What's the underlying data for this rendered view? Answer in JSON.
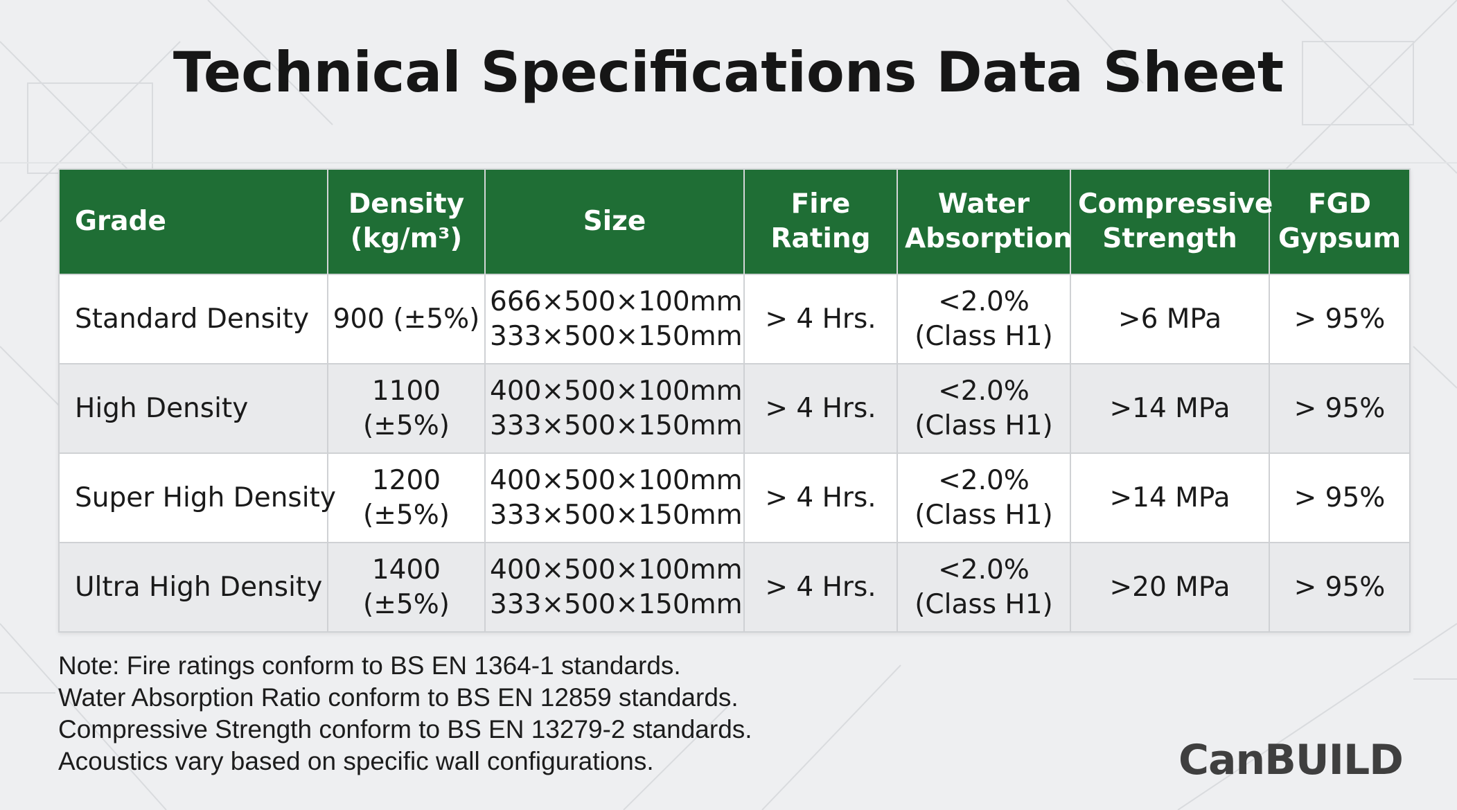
{
  "title": "Technical Specifications Data Sheet",
  "table": {
    "headers": [
      [
        "Grade"
      ],
      [
        "Density",
        "(kg/m³)"
      ],
      [
        "Size"
      ],
      [
        "Fire",
        "Rating"
      ],
      [
        "Water",
        "Absorption"
      ],
      [
        "Compressive",
        "Strength"
      ],
      [
        "FGD",
        "Gypsum"
      ]
    ],
    "rows": [
      {
        "grade": "Standard Density",
        "density": [
          "900 (±5%)"
        ],
        "size": [
          "666×500×100mm",
          "333×500×150mm"
        ],
        "fire_rating": "> 4 Hrs.",
        "water_absorption": [
          "<2.0%",
          "(Class H1)"
        ],
        "compressive_strength": ">6 MPa",
        "fgd_gypsum": "> 95%"
      },
      {
        "grade": "High Density",
        "density": [
          "1100",
          "(±5%)"
        ],
        "size": [
          "400×500×100mm",
          "333×500×150mm"
        ],
        "fire_rating": "> 4 Hrs.",
        "water_absorption": [
          "<2.0%",
          "(Class H1)"
        ],
        "compressive_strength": ">14 MPa",
        "fgd_gypsum": "> 95%"
      },
      {
        "grade": "Super High Density",
        "density": [
          "1200",
          "(±5%)"
        ],
        "size": [
          "400×500×100mm",
          "333×500×150mm"
        ],
        "fire_rating": "> 4 Hrs.",
        "water_absorption": [
          "<2.0%",
          "(Class H1)"
        ],
        "compressive_strength": ">14 MPa",
        "fgd_gypsum": "> 95%"
      },
      {
        "grade": "Ultra High Density",
        "density": [
          "1400",
          "(±5%)"
        ],
        "size": [
          "400×500×100mm",
          "333×500×150mm"
        ],
        "fire_rating": "> 4 Hrs.",
        "water_absorption": [
          "<2.0%",
          "(Class H1)"
        ],
        "compressive_strength": ">20 MPa",
        "fgd_gypsum": "> 95%"
      }
    ]
  },
  "notes": [
    "Note: Fire ratings conform to BS EN 1364-1 standards.",
    "Water Absorption Ratio conform to BS EN 12859 standards.",
    "Compressive Strength conform to BS EN 13279-2 standards.",
    "Acoustics vary based on specific wall configurations."
  ],
  "logo": "CanBUILD",
  "colors": {
    "header_bg": "#1f6e35",
    "header_text": "#ffffff",
    "row_alt_bg": "#e9eaec",
    "page_bg": "#eeeff1"
  }
}
